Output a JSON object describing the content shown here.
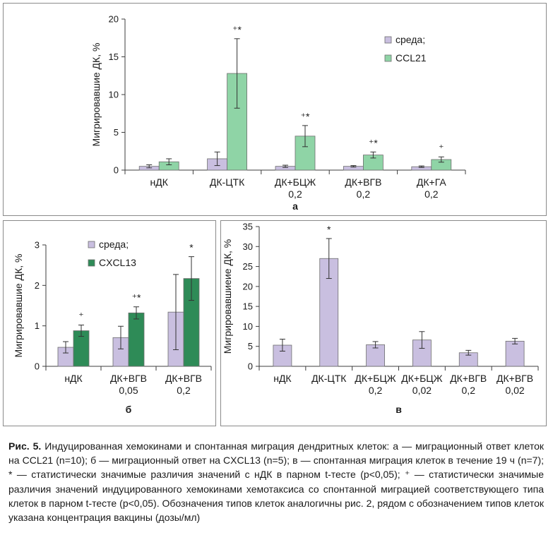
{
  "colors": {
    "media": "#c9bfe0",
    "ccl21": "#8fd4a6",
    "cxcl13": "#2e8b57",
    "axis": "#3c3c3c"
  },
  "chart_data": [
    {
      "id": "a",
      "type": "bar",
      "panel_label": "а",
      "ylabel": "Мигрировавшие ДК, %",
      "ylim": [
        0,
        20
      ],
      "yticks": [
        "0",
        "5",
        "10",
        "15",
        "20"
      ],
      "categories": [
        [
          "нДК"
        ],
        [
          "ДК-ЦТК"
        ],
        [
          "ДК+БЦЖ",
          "0,2"
        ],
        [
          "ДК+ВГВ",
          "0,2"
        ],
        [
          "ДК+ГА",
          "0,2"
        ]
      ],
      "series": [
        {
          "name": "среда;",
          "color": "#c9bfe0",
          "values": [
            0.5,
            1.5,
            0.5,
            0.5,
            0.45
          ],
          "errors": [
            0.2,
            0.9,
            0.15,
            0.1,
            0.1
          ]
        },
        {
          "name": "CCL21",
          "color": "#8fd4a6",
          "values": [
            1.1,
            12.8,
            4.5,
            2.0,
            1.4
          ],
          "errors": [
            0.4,
            4.6,
            1.4,
            0.4,
            0.35
          ]
        }
      ],
      "annotations": [
        "",
        "⁺*",
        "⁺*",
        "⁺*",
        "⁺"
      ],
      "legend_position": "top-right"
    },
    {
      "id": "b",
      "type": "bar",
      "panel_label": "б",
      "ylabel": "Мигрировавшие ДК, %",
      "ylim": [
        0,
        3
      ],
      "yticks": [
        "0",
        "1",
        "2",
        "3"
      ],
      "categories": [
        [
          "нДК"
        ],
        [
          "ДК+ВГВ",
          "0,05"
        ],
        [
          "ДК+ВГВ",
          "0,2"
        ]
      ],
      "series": [
        {
          "name": "среда;",
          "color": "#c9bfe0",
          "values": [
            0.47,
            0.71,
            1.34
          ],
          "errors": [
            0.14,
            0.28,
            0.93
          ]
        },
        {
          "name": "CXCL13",
          "color": "#2e8b57",
          "values": [
            0.88,
            1.32,
            2.17
          ],
          "errors": [
            0.14,
            0.15,
            0.54
          ]
        }
      ],
      "annotations": [
        "⁺",
        "⁺*",
        "*"
      ],
      "legend_position": "top-left"
    },
    {
      "id": "c",
      "type": "bar",
      "panel_label": "в",
      "ylabel": "Мигрировавшиеие ДК, %",
      "ylim": [
        0,
        35
      ],
      "yticks": [
        "0",
        "5",
        "10",
        "15",
        "20",
        "25",
        "30",
        "35"
      ],
      "categories": [
        [
          "нДК"
        ],
        [
          "ДК-ЦТК"
        ],
        [
          "ДК+БЦЖ",
          "0,2"
        ],
        [
          "ДК+БЦЖ",
          "0,02"
        ],
        [
          "ДК+ВГВ",
          "0,2"
        ],
        [
          "ДК+ВГВ",
          "0,02"
        ]
      ],
      "series": [
        {
          "name": "",
          "color": "#c9bfe0",
          "values": [
            5.3,
            27.0,
            5.4,
            6.6,
            3.4,
            6.3
          ],
          "errors": [
            1.5,
            5.0,
            0.8,
            2.1,
            0.6,
            0.7
          ]
        }
      ],
      "annotations": [
        "",
        "*",
        "",
        "",
        "",
        ""
      ],
      "legend_position": "none"
    }
  ],
  "caption": {
    "label": "Рис. 5.",
    "text": " Индуцированная хемокинами и спонтанная миграция дендритных клеток: а — миграционный ответ клеток на CCL21 (n=10); б — миграционный ответ на CXCL13 (n=5); в — спонтанная миграция клеток в течение 19 ч (n=7); * — статистически значимые различия значений с нДК в парном t-тесте (p<0,05); ⁺ — статистически значимые различия значений индуцированного хемокинами хемотаксиса со спонтанной миграцией соответствующего типа клеток в парном t-тесте (p<0,05). Обозначения типов клеток аналогичны рис. 2, рядом с обозначением типов клеток указана концентрация вакцины (дозы/мл)"
  }
}
